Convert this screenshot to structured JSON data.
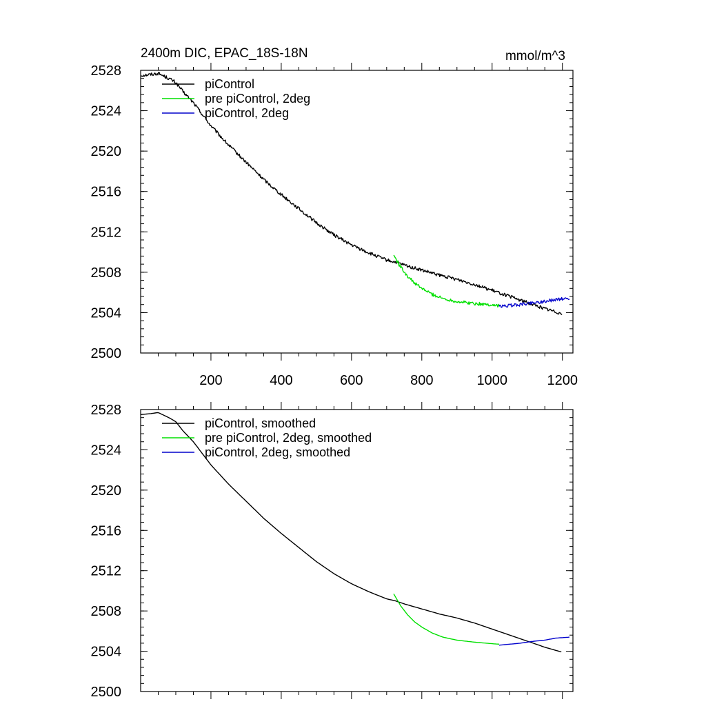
{
  "figure": {
    "title_left": "2400m DIC, EPAC_18S-18N",
    "title_right": "mmol/m^3"
  },
  "colors": {
    "piControl": "#000000",
    "pre_piControl_2deg": "#00e000",
    "piControl_2deg": "#0000cc"
  },
  "chart_data": [
    {
      "type": "line",
      "panel": "top",
      "title": "2400m DIC, EPAC_18S-18N",
      "units": "mmol/m^3",
      "xlim": [
        0,
        1230
      ],
      "ylim": [
        2500,
        2528
      ],
      "xticks": [
        200,
        400,
        600,
        800,
        1000,
        1200
      ],
      "xtick_labels": [
        "200",
        "400",
        "600",
        "800",
        "1000",
        "1200"
      ],
      "yticks": [
        2500,
        2504,
        2508,
        2512,
        2516,
        2520,
        2524,
        2528
      ],
      "ytick_labels": [
        "2500",
        "2504",
        "2508",
        "2512",
        "2516",
        "2520",
        "2524",
        "2528"
      ],
      "legend_position": "top-left",
      "noisy": true,
      "series": [
        {
          "name": "piControl",
          "color_key": "piControl",
          "x": [
            1,
            30,
            50,
            80,
            100,
            120,
            150,
            200,
            250,
            300,
            350,
            400,
            450,
            500,
            550,
            600,
            650,
            700,
            725,
            750,
            800,
            850,
            900,
            950,
            1000,
            1050,
            1100,
            1150,
            1200
          ],
          "y": [
            2527.5,
            2527.6,
            2527.7,
            2527.2,
            2526.8,
            2525.9,
            2524.8,
            2522.5,
            2520.6,
            2518.9,
            2517.2,
            2515.7,
            2514.3,
            2512.9,
            2511.7,
            2510.7,
            2509.9,
            2509.2,
            2509.0,
            2508.7,
            2508.2,
            2507.7,
            2507.3,
            2506.8,
            2506.2,
            2505.6,
            2505.0,
            2504.4,
            2503.9
          ]
        },
        {
          "name": "pre piControl, 2deg",
          "color_key": "pre_piControl_2deg",
          "x": [
            720,
            740,
            760,
            780,
            800,
            830,
            860,
            900,
            950,
            1000,
            1020
          ],
          "y": [
            2509.7,
            2508.5,
            2507.6,
            2506.9,
            2506.4,
            2505.8,
            2505.4,
            2505.1,
            2504.9,
            2504.75,
            2504.7
          ]
        },
        {
          "name": "piControl, 2deg",
          "color_key": "piControl_2deg",
          "x": [
            1020,
            1050,
            1080,
            1100,
            1120,
            1150,
            1180,
            1220
          ],
          "y": [
            2504.6,
            2504.7,
            2504.8,
            2504.9,
            2505.0,
            2505.1,
            2505.3,
            2505.4
          ]
        }
      ]
    },
    {
      "type": "line",
      "panel": "bottom",
      "xlim": [
        0,
        1230
      ],
      "ylim": [
        2500,
        2528
      ],
      "xticks": [
        200,
        400,
        600,
        800,
        1000,
        1200
      ],
      "yticks": [
        2500,
        2504,
        2508,
        2512,
        2516,
        2520,
        2524,
        2528
      ],
      "ytick_labels": [
        "2500",
        "2504",
        "2508",
        "2512",
        "2516",
        "2520",
        "2524",
        "2528"
      ],
      "legend_position": "top-left",
      "noisy": false,
      "series": [
        {
          "name": "piControl, smoothed",
          "color_key": "piControl",
          "x": [
            1,
            30,
            50,
            80,
            100,
            120,
            150,
            200,
            250,
            300,
            350,
            400,
            450,
            500,
            550,
            600,
            650,
            700,
            725,
            750,
            800,
            850,
            900,
            950,
            1000,
            1050,
            1100,
            1150,
            1200
          ],
          "y": [
            2527.5,
            2527.6,
            2527.7,
            2527.2,
            2526.8,
            2525.9,
            2524.8,
            2522.5,
            2520.6,
            2518.9,
            2517.2,
            2515.7,
            2514.3,
            2512.9,
            2511.7,
            2510.7,
            2509.9,
            2509.2,
            2509.0,
            2508.7,
            2508.2,
            2507.7,
            2507.3,
            2506.8,
            2506.2,
            2505.6,
            2505.0,
            2504.4,
            2503.9
          ]
        },
        {
          "name": "pre piControl, 2deg, smoothed",
          "color_key": "pre_piControl_2deg",
          "x": [
            720,
            740,
            760,
            780,
            800,
            830,
            860,
            900,
            950,
            1000,
            1020
          ],
          "y": [
            2509.7,
            2508.5,
            2507.6,
            2506.9,
            2506.4,
            2505.8,
            2505.4,
            2505.1,
            2504.9,
            2504.75,
            2504.7
          ]
        },
        {
          "name": "piControl, 2deg, smoothed",
          "color_key": "piControl_2deg",
          "x": [
            1020,
            1050,
            1080,
            1100,
            1120,
            1150,
            1180,
            1220
          ],
          "y": [
            2504.6,
            2504.7,
            2504.8,
            2504.9,
            2505.0,
            2505.1,
            2505.3,
            2505.4
          ]
        }
      ]
    }
  ]
}
